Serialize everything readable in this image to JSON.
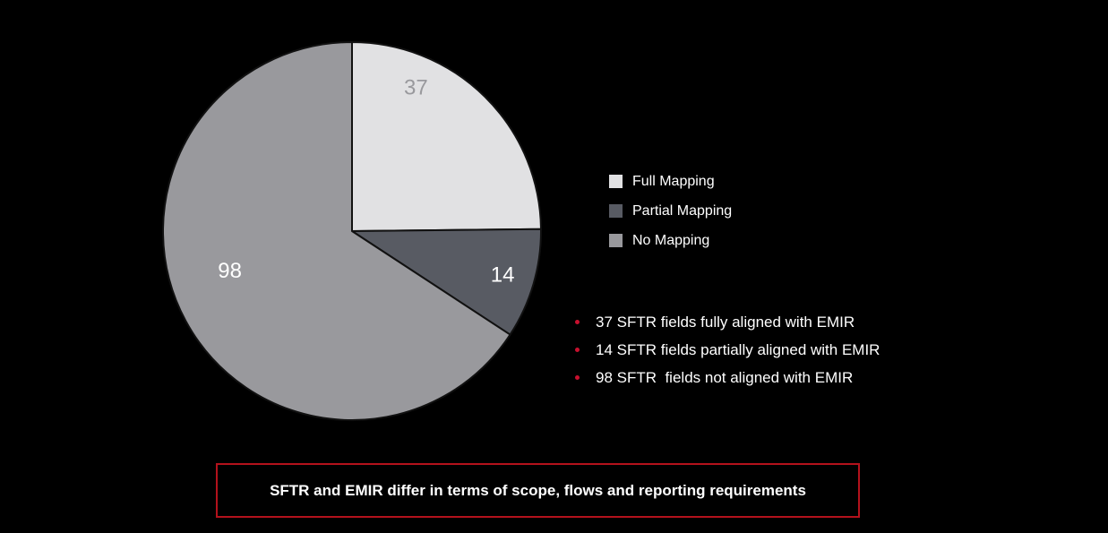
{
  "chart_data": {
    "type": "pie",
    "categories": [
      "Full Mapping",
      "Partial Mapping",
      "No Mapping"
    ],
    "values": [
      37,
      14,
      98
    ],
    "colors": [
      "#e1e1e3",
      "#585b63",
      "#99999d"
    ],
    "label_colors": [
      "#99999d",
      "#ffffff",
      "#ffffff"
    ],
    "start_angle": "12 o'clock",
    "direction": "clockwise",
    "legend_position": "right"
  },
  "bullets": {
    "dot_color": "#c8102e",
    "items": [
      "37 SFTR fields fully aligned with EMIR",
      "14 SFTR fields partially aligned with EMIR",
      "98 SFTR  fields not aligned with EMIR"
    ]
  },
  "callout": {
    "text": "SFTR and EMIR differ in terms of scope, flows and reporting requirements",
    "border_color": "#b3121c"
  }
}
